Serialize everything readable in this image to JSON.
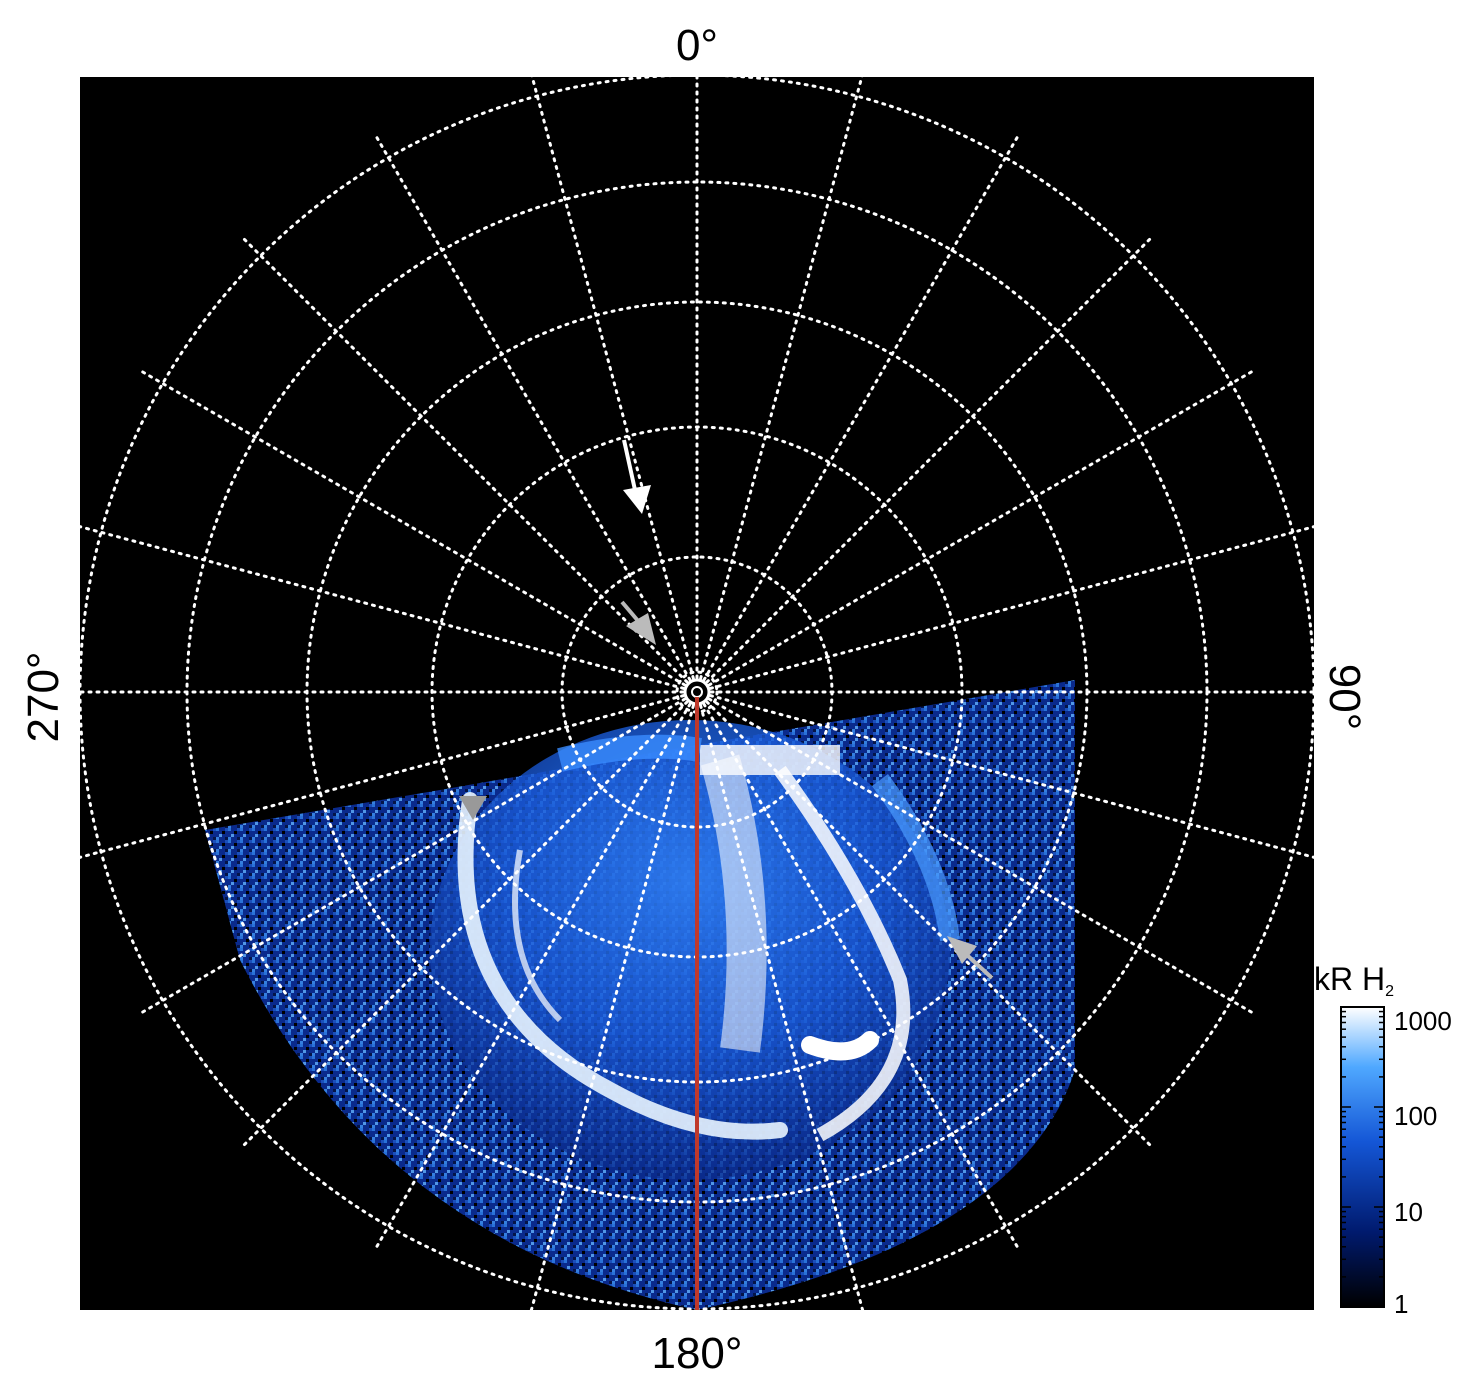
{
  "labels": {
    "top": "0°",
    "bottom": "180°",
    "left": "270°",
    "right": "90°"
  },
  "colorbar": {
    "title": "kR H",
    "title_subscript": "2",
    "ticks": [
      "1000",
      "100",
      "10",
      "1"
    ],
    "scale": "log",
    "range": [
      1,
      1000
    ]
  },
  "grid": {
    "style": "dotted",
    "color": "#ffffff",
    "meridian_step_deg": 15,
    "rings": 6
  },
  "colors": {
    "background": "#000000",
    "aurora_dark": "#001a6e",
    "aurora_mid": "#1e6fe8",
    "aurora_bright": "#ffffff",
    "center_line": "#c0392b",
    "annotation_arrow_white": "#ffffff",
    "annotation_arrow_gray": "#bbbbbb"
  },
  "annotations": {
    "arrows": [
      {
        "name": "north-arrow",
        "color": "white"
      },
      {
        "name": "center-arrow",
        "color": "gray"
      },
      {
        "name": "left-arrow",
        "color": "gray"
      },
      {
        "name": "right-arrow",
        "color": "gray"
      }
    ]
  }
}
